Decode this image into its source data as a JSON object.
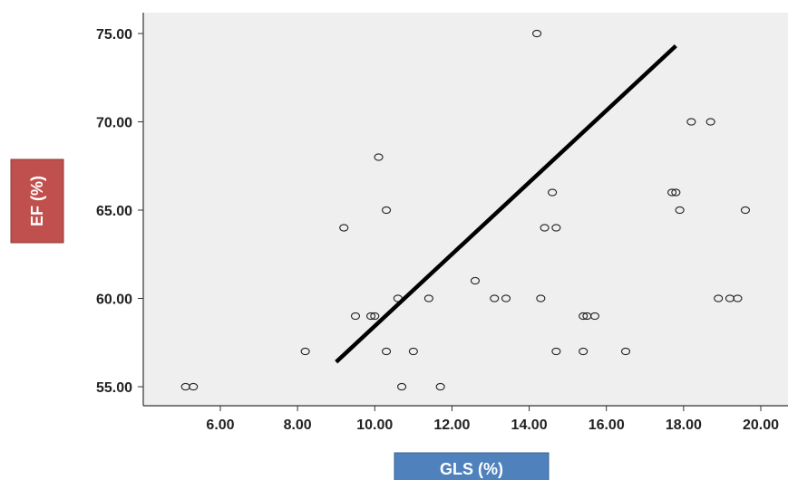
{
  "chart_data": {
    "type": "scatter",
    "xlabel": "GLS (%)",
    "ylabel": "EF (%)",
    "xlim": [
      5.0,
      20.5
    ],
    "ylim": [
      54.0,
      76.0
    ],
    "x_ticks": [
      6.0,
      8.0,
      10.0,
      12.0,
      14.0,
      16.0,
      18.0,
      20.0
    ],
    "x_tick_labels": [
      "6.00",
      "8.00",
      "10.00",
      "12.00",
      "14.00",
      "16.00",
      "18.00",
      "20.00"
    ],
    "y_ticks": [
      55.0,
      60.0,
      65.0,
      70.0,
      75.0
    ],
    "y_tick_labels": [
      "55.00",
      "60.00",
      "65.00",
      "70.00",
      "75.00"
    ],
    "grid": false,
    "legend": "none",
    "points": [
      {
        "x": 5.1,
        "y": 55
      },
      {
        "x": 5.3,
        "y": 55
      },
      {
        "x": 8.2,
        "y": 57
      },
      {
        "x": 9.2,
        "y": 64
      },
      {
        "x": 9.5,
        "y": 59
      },
      {
        "x": 9.9,
        "y": 59
      },
      {
        "x": 10.0,
        "y": 59
      },
      {
        "x": 10.1,
        "y": 68
      },
      {
        "x": 10.3,
        "y": 65
      },
      {
        "x": 10.3,
        "y": 57
      },
      {
        "x": 10.6,
        "y": 60
      },
      {
        "x": 10.7,
        "y": 55
      },
      {
        "x": 11.0,
        "y": 57
      },
      {
        "x": 11.4,
        "y": 60
      },
      {
        "x": 11.7,
        "y": 55
      },
      {
        "x": 12.6,
        "y": 61
      },
      {
        "x": 13.1,
        "y": 60
      },
      {
        "x": 13.4,
        "y": 60
      },
      {
        "x": 14.2,
        "y": 75
      },
      {
        "x": 14.3,
        "y": 60
      },
      {
        "x": 14.4,
        "y": 64
      },
      {
        "x": 14.6,
        "y": 66
      },
      {
        "x": 14.7,
        "y": 64
      },
      {
        "x": 14.7,
        "y": 57
      },
      {
        "x": 15.4,
        "y": 59
      },
      {
        "x": 15.5,
        "y": 59
      },
      {
        "x": 15.7,
        "y": 59
      },
      {
        "x": 15.4,
        "y": 57
      },
      {
        "x": 16.5,
        "y": 57
      },
      {
        "x": 17.7,
        "y": 66
      },
      {
        "x": 17.8,
        "y": 66
      },
      {
        "x": 17.9,
        "y": 65
      },
      {
        "x": 18.2,
        "y": 70
      },
      {
        "x": 18.7,
        "y": 70
      },
      {
        "x": 18.9,
        "y": 60
      },
      {
        "x": 19.2,
        "y": 60
      },
      {
        "x": 19.4,
        "y": 60
      },
      {
        "x": 19.6,
        "y": 65
      }
    ],
    "fit_line": {
      "x1": 9.0,
      "y1": 56.4,
      "x2": 17.8,
      "y2": 74.3
    },
    "colors": {
      "plot_background": "#efefef",
      "point_stroke": "#222222",
      "fit_line": "#000000",
      "ylabel_box": "#c0504d",
      "xlabel_box": "#4f81bd"
    }
  }
}
